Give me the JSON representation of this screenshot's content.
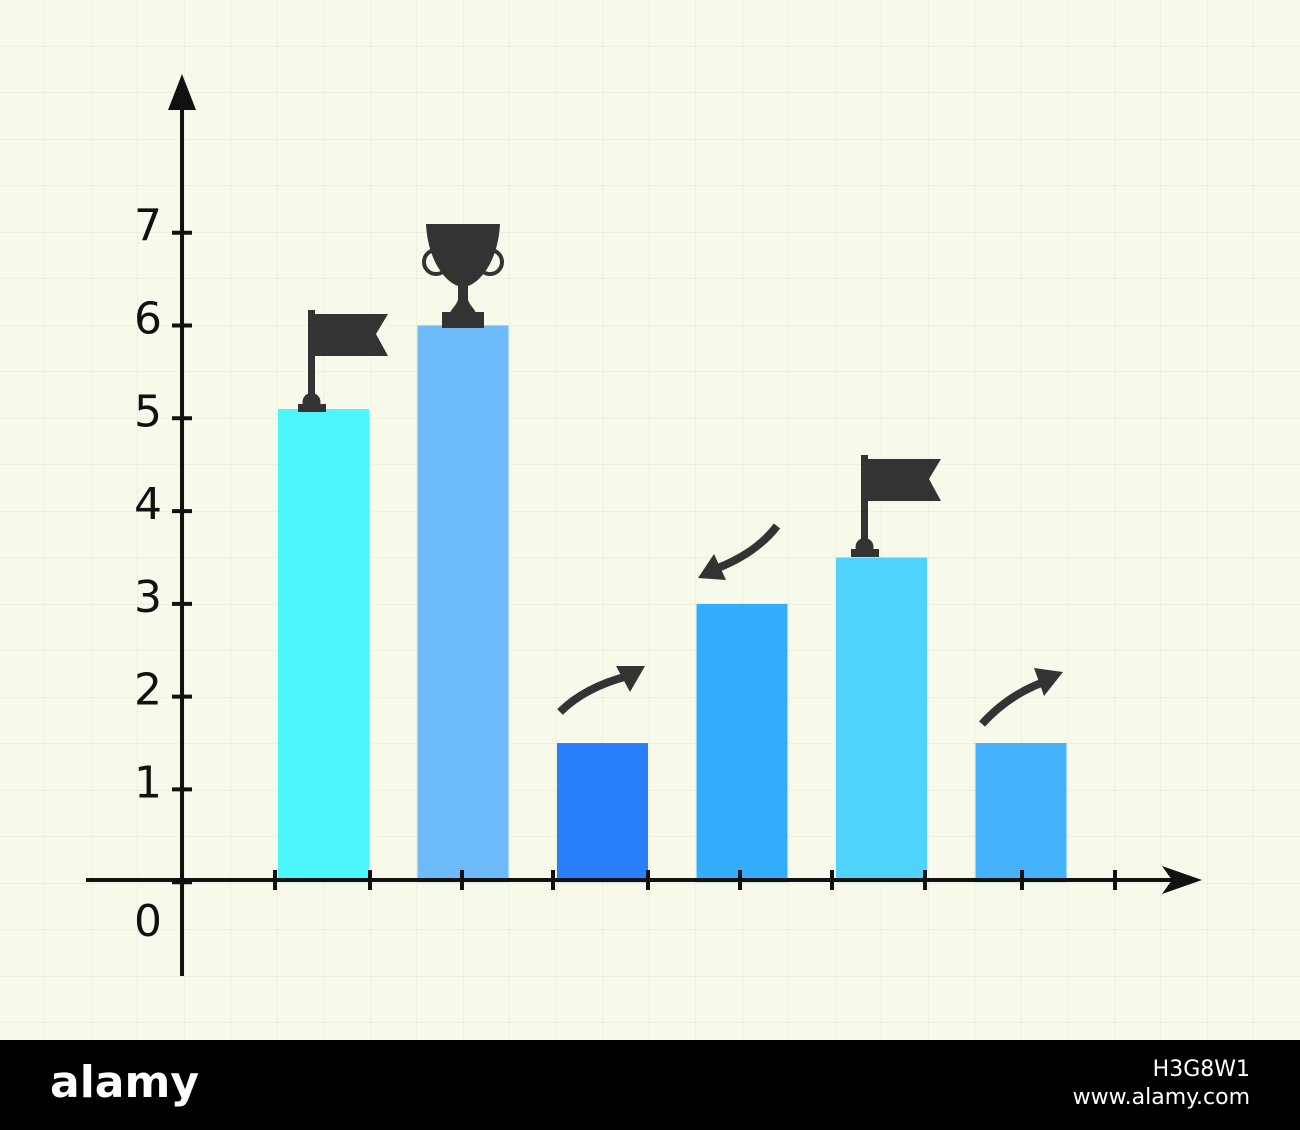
{
  "chart_data": {
    "type": "bar",
    "values": [
      5.1,
      6,
      1.5,
      3,
      3.5,
      1.5
    ],
    "colors": [
      "#4cf4fc",
      "#6ebbfc",
      "#2a80fc",
      "#33aefc",
      "#4fd2fc",
      "#44b2fc"
    ],
    "ylim": [
      -1,
      8.7
    ],
    "yticks": [
      0,
      1,
      2,
      3,
      4,
      5,
      6,
      7
    ]
  },
  "footer": {
    "brand": "alamy",
    "image_id": "H3G8W1",
    "url": "www.alamy.com"
  }
}
